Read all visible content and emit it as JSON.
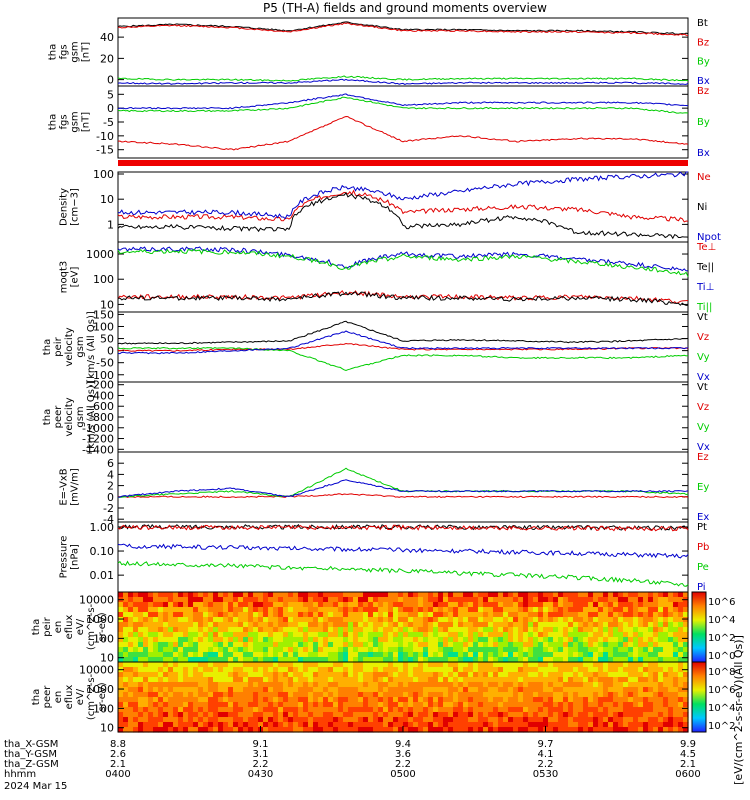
{
  "title": "P5 (TH-A) fields and ground moments overview",
  "colors": {
    "black": "#000000",
    "red": "#e00000",
    "green": "#00cc00",
    "blue": "#0000cc"
  },
  "chart_data": [
    {
      "type": "line",
      "id": "p1",
      "ylabel_lines": [
        "tha",
        "fgs",
        "gsm",
        "[nT]"
      ],
      "ylim": [
        -6,
        58
      ],
      "log": false,
      "yticks": [
        0,
        20,
        40
      ],
      "series": [
        {
          "name": "Bt",
          "color": "black",
          "values": [
            50,
            52,
            50,
            46,
            54,
            47,
            47,
            46,
            46,
            45,
            43
          ]
        },
        {
          "name": "Bz",
          "color": "red",
          "values": [
            49,
            51,
            49,
            45,
            53,
            46,
            46,
            45,
            45,
            44,
            42
          ]
        },
        {
          "name": "By",
          "color": "green",
          "values": [
            1,
            0,
            0,
            -1,
            3,
            0,
            1,
            1,
            1,
            1,
            -1
          ]
        },
        {
          "name": "Bx",
          "color": "blue",
          "values": [
            -3,
            -4,
            -3,
            -3,
            0,
            -4,
            -3,
            -3,
            -3,
            -3,
            -4
          ]
        }
      ]
    },
    {
      "type": "line",
      "id": "p2",
      "ylabel_lines": [
        "tha",
        "fgs",
        "gsm",
        "[nT]"
      ],
      "ylim": [
        -18,
        8
      ],
      "log": false,
      "yticks": [
        5,
        0,
        -5,
        -10,
        -15
      ],
      "series": [
        {
          "name": "Bz",
          "color": "red",
          "values": [
            -12,
            -13,
            -15,
            -12,
            -3,
            -12,
            -10,
            -12,
            -11,
            -11,
            -13
          ]
        },
        {
          "name": "By",
          "color": "green",
          "values": [
            -1,
            -1,
            -1,
            0,
            4,
            0,
            0,
            0,
            0,
            0,
            -2
          ]
        },
        {
          "name": "Bx",
          "color": "blue",
          "values": [
            0,
            0,
            0,
            2,
            5,
            1,
            2,
            2,
            2,
            2,
            1
          ]
        }
      ]
    },
    {
      "type": "line",
      "id": "p3",
      "ylabel_lines": [
        "Density",
        "[cm−3]"
      ],
      "ylim": [
        0.2,
        120
      ],
      "log": true,
      "yticks": [
        1,
        10,
        100
      ],
      "series": [
        {
          "name": "Ne",
          "color": "red",
          "values": [
            2,
            2,
            2,
            1.5,
            20,
            3,
            4,
            5,
            4,
            2,
            1.5
          ]
        },
        {
          "name": "Ni",
          "color": "black",
          "values": [
            0.8,
            0.8,
            0.7,
            0.6,
            15,
            0.8,
            1,
            2,
            0.5,
            0.4,
            0.3
          ]
        },
        {
          "name": "Npot",
          "color": "blue",
          "values": [
            3,
            3,
            3,
            2,
            30,
            10,
            20,
            40,
            60,
            80,
            100
          ]
        }
      ]
    },
    {
      "type": "line",
      "id": "p4",
      "ylabel_lines": [
        "moqt3",
        "[eV]"
      ],
      "ylim": [
        5,
        3000
      ],
      "log": true,
      "yticks": [
        10,
        100,
        1000
      ],
      "series": [
        {
          "name": "Te⊥",
          "color": "red",
          "values": [
            20,
            20,
            20,
            18,
            30,
            20,
            20,
            18,
            20,
            18,
            12
          ]
        },
        {
          "name": "Te||",
          "color": "black",
          "values": [
            18,
            18,
            18,
            16,
            28,
            18,
            18,
            16,
            18,
            16,
            10
          ]
        },
        {
          "name": "Ti⊥",
          "color": "blue",
          "values": [
            1500,
            1600,
            1500,
            900,
            300,
            1000,
            800,
            1000,
            600,
            400,
            200
          ]
        },
        {
          "name": "Ti||",
          "color": "green",
          "values": [
            1200,
            1300,
            1200,
            800,
            250,
            800,
            600,
            800,
            500,
            300,
            150
          ]
        }
      ]
    },
    {
      "type": "line",
      "id": "p5",
      "ylabel_lines": [
        "tha",
        "peir",
        "velocity",
        "gsm",
        "[km/s (All Qs)]"
      ],
      "ylim": [
        -130,
        160
      ],
      "log": false,
      "yticks": [
        150,
        100,
        50,
        0,
        -50,
        -100
      ],
      "series": [
        {
          "name": "Vt",
          "color": "black",
          "values": [
            30,
            30,
            35,
            40,
            120,
            40,
            45,
            40,
            35,
            40,
            50
          ]
        },
        {
          "name": "Vz",
          "color": "red",
          "values": [
            0,
            0,
            5,
            5,
            30,
            5,
            5,
            5,
            5,
            10,
            10
          ]
        },
        {
          "name": "Vy",
          "color": "green",
          "values": [
            10,
            10,
            10,
            0,
            -80,
            -20,
            -20,
            -30,
            -30,
            -30,
            -20
          ]
        },
        {
          "name": "Vx",
          "color": "blue",
          "values": [
            -10,
            -10,
            0,
            10,
            80,
            10,
            10,
            10,
            10,
            10,
            10
          ]
        }
      ]
    },
    {
      "type": "line",
      "id": "p6",
      "ylabel_lines": [
        "tha",
        "peer",
        "velocity",
        "gsm",
        "[km/s (All Qs)]"
      ],
      "ylim": [
        -1450,
        -150
      ],
      "log": false,
      "yticks": [
        -200,
        -400,
        -600,
        -800,
        -1000,
        -1200,
        -1400
      ],
      "series": [
        {
          "name": "Vt",
          "color": "black",
          "values": []
        },
        {
          "name": "Vz",
          "color": "red",
          "values": []
        },
        {
          "name": "Vy",
          "color": "green",
          "values": []
        },
        {
          "name": "Vx",
          "color": "blue",
          "values": []
        }
      ]
    },
    {
      "type": "line",
      "id": "p7",
      "ylabel_lines": [
        "E=-VxB",
        "[mV/m]"
      ],
      "ylim": [
        -4.5,
        8
      ],
      "log": false,
      "yticks": [
        6,
        4,
        2,
        0,
        -2,
        -4
      ],
      "series": [
        {
          "name": "Ez",
          "color": "red",
          "values": [
            0,
            0,
            0,
            0,
            0.5,
            0,
            0,
            0,
            0,
            0,
            0
          ]
        },
        {
          "name": "Ey",
          "color": "green",
          "values": [
            0,
            0.5,
            1,
            0,
            5,
            1,
            1,
            1,
            1,
            1,
            0.5
          ]
        },
        {
          "name": "Ex",
          "color": "blue",
          "values": [
            0,
            1,
            1.5,
            0,
            3,
            1,
            1,
            1,
            1,
            1,
            1
          ]
        }
      ]
    },
    {
      "type": "line",
      "id": "p8",
      "ylabel_lines": [
        "Pressure",
        "[nPa]"
      ],
      "ylim": [
        0.002,
        1.6
      ],
      "log": true,
      "yticks": [
        0.01,
        0.1,
        1
      ],
      "ytick_labels": [
        "0.01",
        "0.10",
        "1.00"
      ],
      "series": [
        {
          "name": "Pt",
          "color": "black",
          "values": [
            1,
            1,
            1,
            1,
            1,
            1,
            0.95,
            0.95,
            0.95,
            0.9,
            0.9
          ]
        },
        {
          "name": "Pb",
          "color": "red",
          "values": [
            0.95,
            0.95,
            0.95,
            0.95,
            0.95,
            0.95,
            0.9,
            0.9,
            0.9,
            0.85,
            0.85
          ]
        },
        {
          "name": "Pe",
          "color": "green",
          "values": [
            0.03,
            0.028,
            0.025,
            0.02,
            0.018,
            0.015,
            0.012,
            0.01,
            0.008,
            0.006,
            0.004
          ]
        },
        {
          "name": "Pi",
          "color": "blue",
          "values": [
            0.16,
            0.15,
            0.14,
            0.13,
            0.12,
            0.11,
            0.1,
            0.09,
            0.08,
            0.07,
            0.06
          ]
        }
      ]
    },
    {
      "type": "heatmap",
      "id": "s1",
      "ylabel_lines": [
        "tha",
        "peir",
        "en",
        "eflux",
        "eV/",
        "(cm^2-s-",
        "sr-eV)"
      ],
      "ylim": [
        6,
        25000
      ],
      "log": true,
      "yticks": [
        10,
        100,
        1000,
        10000
      ]
    },
    {
      "type": "heatmap",
      "id": "s2",
      "ylabel_lines": [
        "tha",
        "peer",
        "en",
        "eflux",
        "eV/",
        "(cm^2-s-",
        "sr-eV)"
      ],
      "ylim": [
        6,
        25000
      ],
      "log": true,
      "yticks": [
        10,
        100,
        1000,
        10000
      ]
    }
  ],
  "colorbar": {
    "label": "[eV/(cm^2-s-sr-eV)(All Qs)]",
    "bar1_ticks": [
      "10^6",
      "10^4",
      "10^2",
      "10^0"
    ],
    "bar2_ticks": [
      "10^8",
      "10^6",
      "10^4",
      "10^2"
    ]
  },
  "xaxis": {
    "tick_fracs": [
      0,
      0.25,
      0.5,
      0.75,
      1
    ],
    "rows": [
      {
        "label": "tha_X-GSM",
        "values": [
          "8.8",
          "9.1",
          "9.4",
          "9.7",
          "9.9"
        ]
      },
      {
        "label": "tha_Y-GSM",
        "values": [
          "2.6",
          "3.1",
          "3.6",
          "4.1",
          "4.5"
        ]
      },
      {
        "label": "tha_Z-GSM",
        "values": [
          "2.1",
          "2.2",
          "2.2",
          "2.2",
          "2.1"
        ]
      },
      {
        "label": "hhmm",
        "values": [
          "0400",
          "0430",
          "0500",
          "0530",
          "0600"
        ]
      }
    ],
    "date": "2024 Mar 15"
  }
}
